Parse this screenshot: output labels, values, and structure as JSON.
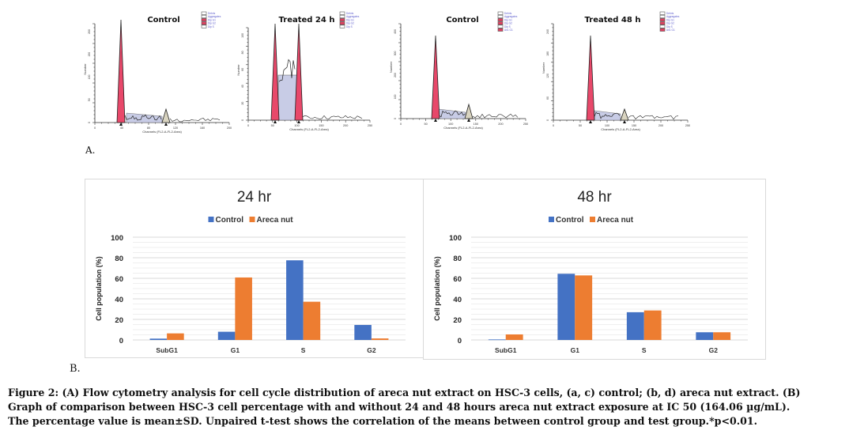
{
  "figure_label": "Figure 2",
  "panel_a": {
    "letter": "A.",
    "flow_panels": [
      {
        "title": "Control",
        "legend": [
          "Debris",
          "Aggregates",
          "Dip G1",
          "Dip G2",
          "Dip S"
        ],
        "x_ticks": [
          "0",
          "40",
          "80",
          "120",
          "160",
          "200"
        ],
        "y_ticks": [
          "0",
          "50",
          "100",
          "150",
          "200"
        ],
        "xlabel": "Channels (FL2-A-FL2-Area)",
        "ylabel": "Number"
      },
      {
        "title": "Treated 24 h",
        "legend": [
          "Debris",
          "Aggregates",
          "Dip G1",
          "Dip G2",
          "Dip S"
        ],
        "x_ticks": [
          "0",
          "50",
          "100",
          "150",
          "200",
          "250"
        ],
        "y_ticks": [
          "0",
          "20",
          "40",
          "60",
          "80",
          "100"
        ],
        "xlabel": "Channels (FL2-A-FL2-Area)",
        "ylabel": "Number"
      },
      {
        "title": "Control",
        "legend": [
          "Debris",
          "Aggregates",
          "Dip G1",
          "Dip G2",
          "Dip S",
          "An1 G1"
        ],
        "x_ticks": [
          "0",
          "50",
          "100",
          "150",
          "200",
          "250"
        ],
        "y_ticks": [
          "0",
          "100",
          "200",
          "300",
          "400"
        ],
        "xlabel": "Channels (FL2-A-FL2-Area)",
        "ylabel": "Number"
      },
      {
        "title": "Treated 48 h",
        "legend": [
          "Debris",
          "Aggregates",
          "Dip G1",
          "Dip G2",
          "Dip S",
          "An1 G1"
        ],
        "x_ticks": [
          "0",
          "50",
          "100",
          "150",
          "200",
          "250"
        ],
        "y_ticks": [
          "0",
          "60",
          "120",
          "180",
          "240"
        ],
        "xlabel": "Channels (FL2-A-FL2-Area)",
        "ylabel": "Number"
      }
    ]
  },
  "panel_b": {
    "letter": "B."
  },
  "colors": {
    "control": "#4472c4",
    "areca_nut": "#ed7d31",
    "g1_fill": "#e8486a",
    "s_fill": "#c8cce6",
    "g2_fill": "#d9d4c0"
  },
  "chart_data": [
    {
      "type": "bar",
      "title": "24 hr",
      "categories": [
        "SubG1",
        "G1",
        "S",
        "G2"
      ],
      "series": [
        {
          "name": "Control",
          "values": [
            1.3,
            8,
            77.5,
            14.6
          ]
        },
        {
          "name": "Areca nut",
          "values": [
            6.4,
            60.8,
            37.2,
            1.5
          ]
        }
      ],
      "xlabel": "",
      "ylabel": "Cell population (%)",
      "ylim": [
        0,
        100
      ],
      "y_ticks": [
        0,
        20,
        40,
        60,
        80,
        100
      ],
      "grid": true,
      "legend": "top-center"
    },
    {
      "type": "bar",
      "title": "48 hr",
      "categories": [
        "SubG1",
        "G1",
        "S",
        "G2"
      ],
      "series": [
        {
          "name": "Control",
          "values": [
            0.5,
            64.4,
            27,
            7.5
          ]
        },
        {
          "name": "Areca nut",
          "values": [
            5.4,
            62.8,
            28.7,
            7.5
          ]
        }
      ],
      "xlabel": "",
      "ylabel": "Cell population (%)",
      "ylim": [
        0,
        100
      ],
      "y_ticks": [
        0,
        20,
        40,
        60,
        80,
        100
      ],
      "grid": true,
      "legend": "top-center"
    }
  ],
  "caption": {
    "lines": [
      "Figure 2: (A) Flow cytometry analysis for cell cycle distribution of areca nut extract on HSC-3 cells, (a, c) control; (b, d) areca nut extract. (B)",
      "Graph of comparison between HSC-3 cell percentage with and without 24 and 48 hours areca nut extract exposure at IC 50 (164.06 µg/mL).",
      "The percentage value is mean±SD. Unpaired t-test shows the correlation of the means between control group and test group.*p<0.01."
    ]
  }
}
